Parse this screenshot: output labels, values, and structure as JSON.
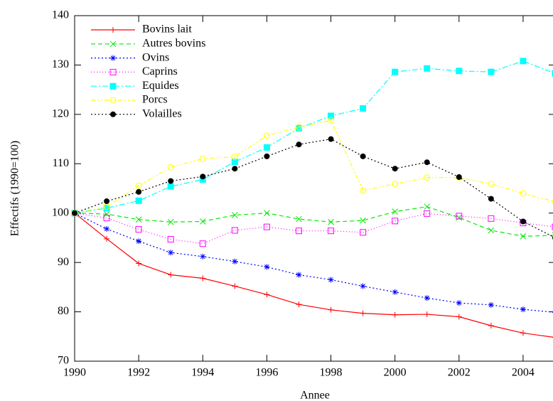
{
  "chart_data": {
    "type": "line",
    "x_label": "Annee",
    "y_label": "Effectifs (1990=100)",
    "x": [
      1990,
      1991,
      1992,
      1993,
      1994,
      1995,
      1996,
      1997,
      1998,
      1999,
      2000,
      2001,
      2002,
      2003,
      2004,
      2005
    ],
    "xlim": [
      1990,
      2005
    ],
    "xticks": [
      1990,
      1992,
      1994,
      1996,
      1998,
      2000,
      2002,
      2004
    ],
    "ylim": [
      70,
      140
    ],
    "yticks": [
      70,
      80,
      90,
      100,
      110,
      120,
      130,
      140
    ],
    "legend": "upper left",
    "series": [
      {
        "name": "Bovins lait",
        "color": "#ff0000",
        "values": [
          100,
          94.8,
          89.8,
          87.5,
          86.8,
          85.2,
          83.5,
          81.5,
          80.4,
          79.7,
          79.4,
          79.5,
          79.0,
          77.2,
          75.7,
          74.8
        ]
      },
      {
        "name": "Autres bovins",
        "color": "#00ee00",
        "values": [
          100,
          99.8,
          98.7,
          98.2,
          98.3,
          99.6,
          100.0,
          98.8,
          98.2,
          98.5,
          100.3,
          101.3,
          99.1,
          96.5,
          95.3,
          95.5
        ]
      },
      {
        "name": "Ovins",
        "color": "#0000ff",
        "values": [
          100,
          96.8,
          94.3,
          92.0,
          91.2,
          90.2,
          89.1,
          87.5,
          86.5,
          85.2,
          84.0,
          82.8,
          81.8,
          81.4,
          80.5,
          79.9
        ]
      },
      {
        "name": "Caprins",
        "color": "#ff00ff",
        "values": [
          100,
          99.0,
          96.7,
          94.7,
          93.8,
          96.5,
          97.2,
          96.4,
          96.4,
          96.1,
          98.4,
          99.9,
          99.4,
          98.9,
          98.0,
          97.2
        ]
      },
      {
        "name": "Equides",
        "color": "#00ffff",
        "values": [
          100,
          101.0,
          102.5,
          105.4,
          106.8,
          110.4,
          113.3,
          117.2,
          119.7,
          121.2,
          128.6,
          129.3,
          128.8,
          128.6,
          130.8,
          128.3
        ]
      },
      {
        "name": "Porcs",
        "color": "#ffff00",
        "values": [
          100,
          101.3,
          105.5,
          109.3,
          111.0,
          111.4,
          115.7,
          117.4,
          118.8,
          104.6,
          105.9,
          107.2,
          107.2,
          105.9,
          104.0,
          102.3
        ]
      },
      {
        "name": "Volailles",
        "color": "#000000",
        "values": [
          100,
          102.4,
          104.3,
          106.5,
          107.4,
          109.0,
          111.5,
          113.9,
          115.0,
          111.5,
          109.0,
          110.3,
          107.3,
          102.9,
          98.3,
          95.0
        ]
      }
    ]
  }
}
